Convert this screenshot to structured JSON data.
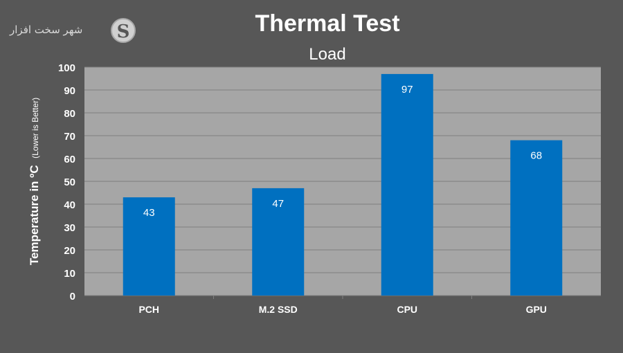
{
  "logo": {
    "text": "شهر سخت افزار",
    "mark": "S"
  },
  "chart_data": {
    "type": "bar",
    "title": "Thermal Test",
    "subtitle": "Load",
    "ylabel_main": "Temperature in ºC",
    "ylabel_note": "(Lower is Better)",
    "categories": [
      "PCH",
      "M.2 SSD",
      "CPU",
      "GPU"
    ],
    "values": [
      43,
      47,
      97,
      68
    ],
    "data_labels": [
      "43",
      "47",
      "97",
      "68"
    ],
    "ylim": [
      0,
      100
    ],
    "yticks": [
      0,
      10,
      20,
      30,
      40,
      50,
      60,
      70,
      80,
      90,
      100
    ],
    "grid": true,
    "bar_color": "#0070c0",
    "plot_bg": "#a6a6a6",
    "page_bg": "#575757"
  }
}
